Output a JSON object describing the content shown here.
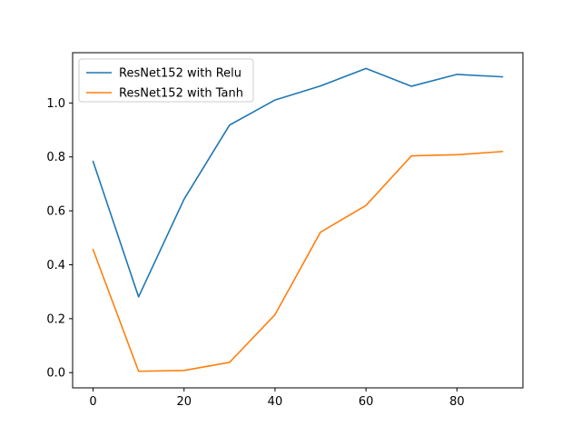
{
  "chart_data": {
    "type": "line",
    "x": [
      0,
      10,
      20,
      30,
      40,
      50,
      60,
      70,
      80,
      90
    ],
    "series": [
      {
        "name": "ResNet152 with Relu",
        "color": "#1f77b4",
        "values": [
          0.783,
          0.281,
          0.643,
          0.918,
          1.011,
          1.063,
          1.128,
          1.062,
          1.106,
          1.097
        ]
      },
      {
        "name": "ResNet152 with Tanh",
        "color": "#ff7f0e",
        "values": [
          0.456,
          0.005,
          0.008,
          0.038,
          0.215,
          0.521,
          0.62,
          0.804,
          0.808,
          0.82
        ]
      }
    ],
    "xlim": [
      -4.5,
      94.5
    ],
    "ylim": [
      -0.0565,
      1.1865
    ],
    "xticks": [
      0,
      20,
      40,
      60,
      80
    ],
    "yticks": [
      0.0,
      0.2,
      0.4,
      0.6,
      0.8,
      1.0
    ],
    "xtick_labels": [
      "0",
      "20",
      "40",
      "60",
      "80"
    ],
    "ytick_labels": [
      "0.0",
      "0.2",
      "0.4",
      "0.6",
      "0.8",
      "1.0"
    ],
    "title": "",
    "xlabel": "",
    "ylabel": "",
    "grid": false,
    "legend_position": "upper-left"
  }
}
